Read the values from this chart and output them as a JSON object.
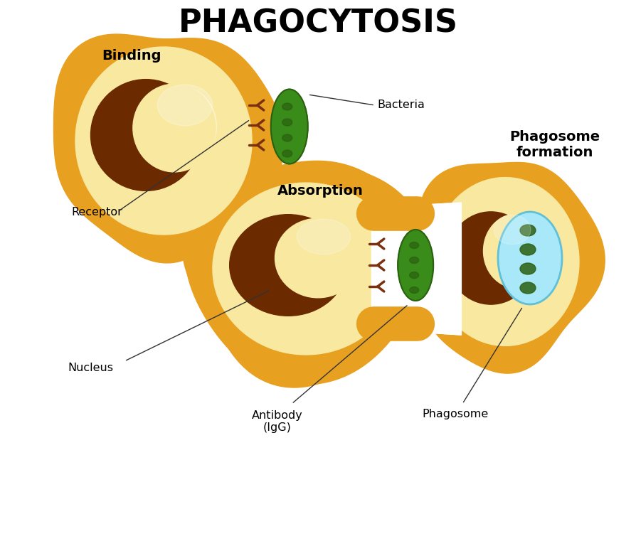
{
  "title": "PHAGOCYTOSIS",
  "title_fontsize": 32,
  "title_fontweight": "bold",
  "background_color": "#ffffff",
  "labels": {
    "binding": "Binding",
    "bacteria": "Bacteria",
    "absorption": "Absorption",
    "receptor": "Receptor",
    "nucleus": "Nucleus",
    "antibody": "Antibody\n(IgG)",
    "phagosome_formation": "Phagosome\nformation",
    "phagosome": "Phagosome"
  },
  "colors": {
    "cell_outer": "#E8A020",
    "cell_inner_light": "#F5D080",
    "cell_nucleus_dark": "#6B2A00",
    "cell_nucleus_light": "#FFFADC",
    "bacteria_green": "#3A8C1A",
    "bacteria_dark": "#2A6010",
    "receptor_color": "#7B3010",
    "phagosome_blue": "#A8E8F8",
    "phagosome_blue_dark": "#60C0D8",
    "annotation_line": "#333333",
    "label_color": "#000000"
  }
}
